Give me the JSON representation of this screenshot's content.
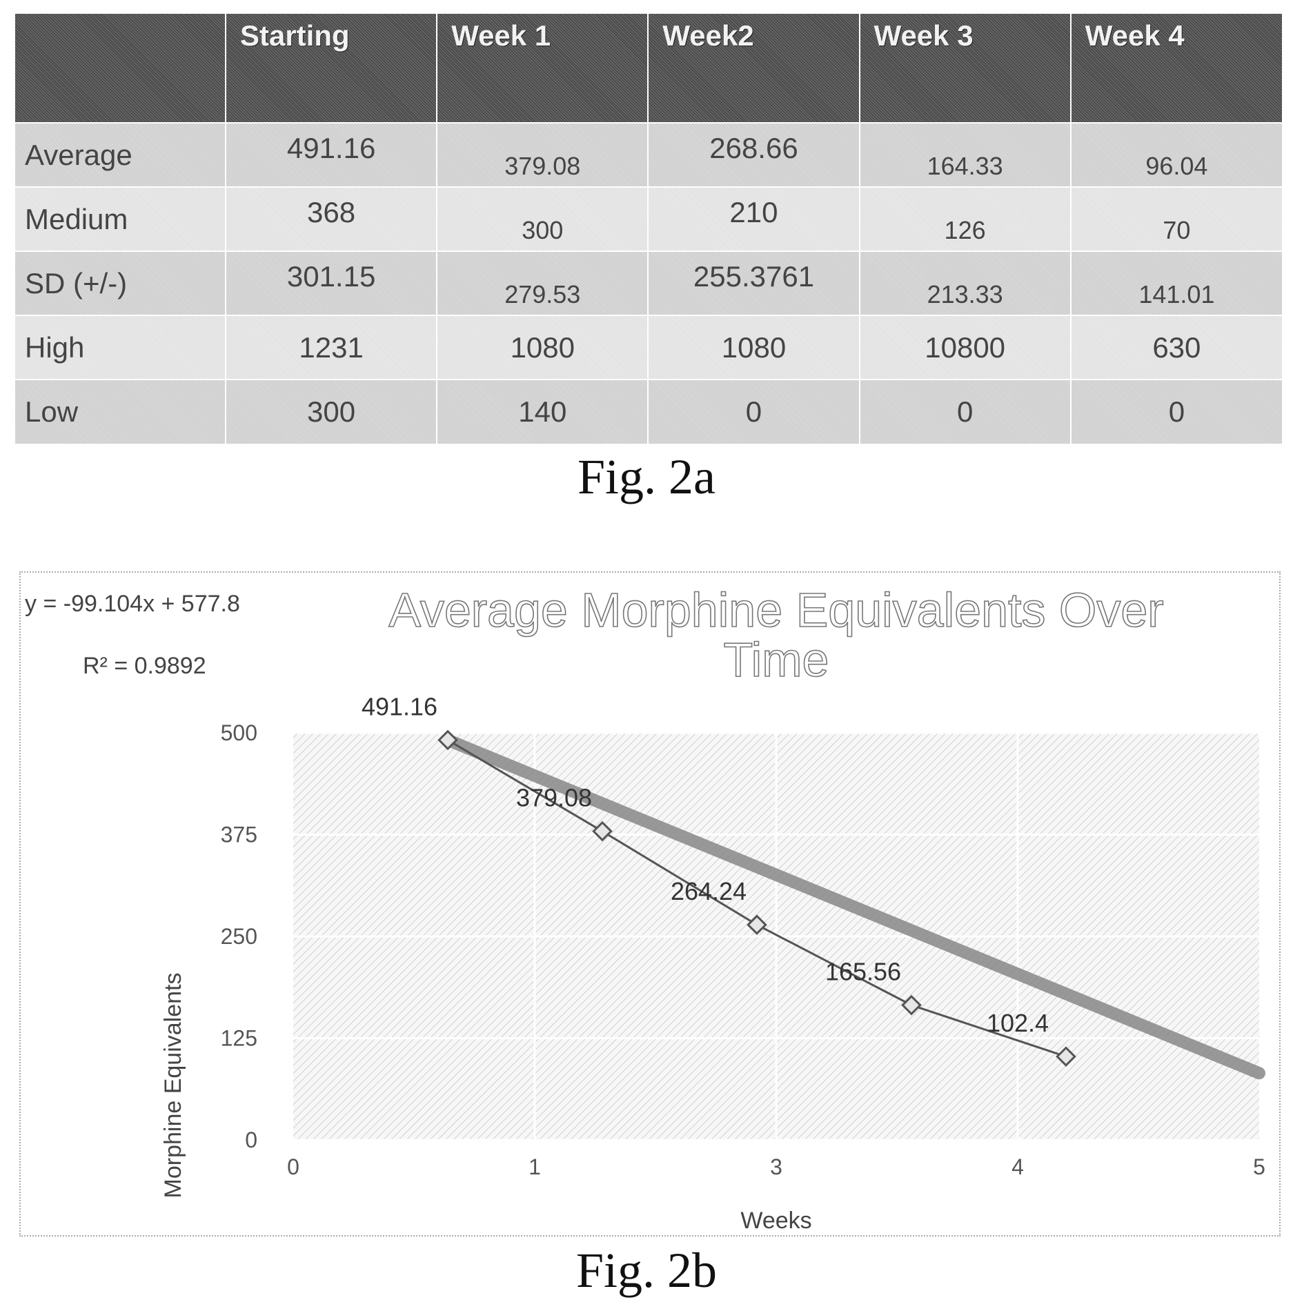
{
  "table": {
    "headers": [
      "",
      "Starting",
      "Week 1",
      "Week2",
      "Week 3",
      "Week 4"
    ],
    "rows": [
      {
        "label": "Average",
        "values": [
          "491.16",
          "379.08",
          "268.66",
          "164.33",
          "96.04"
        ]
      },
      {
        "label": "Medium",
        "values": [
          "368",
          "300",
          "210",
          "126",
          "70"
        ]
      },
      {
        "label": "SD (+/-)",
        "values": [
          "301.15",
          "279.53",
          "255.3761",
          "213.33",
          "141.01"
        ]
      },
      {
        "label": "High",
        "values": [
          "1231",
          "1080",
          "1080",
          "10800",
          "630"
        ]
      },
      {
        "label": "Low",
        "values": [
          "300",
          "140",
          "0",
          "0",
          "0"
        ]
      }
    ]
  },
  "captions": {
    "fig_a": "Fig. 2a",
    "fig_b": "Fig. 2b"
  },
  "chart_data": {
    "type": "scatter",
    "title_lines": [
      "Average Morphine Equivalents Over",
      "Time"
    ],
    "xlabel": "Weeks",
    "ylabel": "Morphine Equivalents",
    "xlim": [
      0,
      5
    ],
    "ylim": [
      0,
      500
    ],
    "x_tick_labels": [
      "0",
      "1",
      "3",
      "4",
      "5"
    ],
    "y_ticks": [
      "0",
      "125",
      "250",
      "375",
      "500"
    ],
    "points": [
      {
        "x": 0.8,
        "y": 491.16,
        "label": "491.16"
      },
      {
        "x": 1.6,
        "y": 379.08,
        "label": "379.08"
      },
      {
        "x": 2.4,
        "y": 264.24,
        "label": "264.24"
      },
      {
        "x": 3.2,
        "y": 165.56,
        "label": "165.56"
      },
      {
        "x": 4.0,
        "y": 102.4,
        "label": "102.4"
      }
    ],
    "trendline": {
      "equation": "y = -99.104x + 577.8",
      "r_squared": "R² = 0.9892",
      "x_range": [
        0.8,
        5.0
      ],
      "y_range": [
        491.16,
        82
      ]
    },
    "grid": true
  }
}
